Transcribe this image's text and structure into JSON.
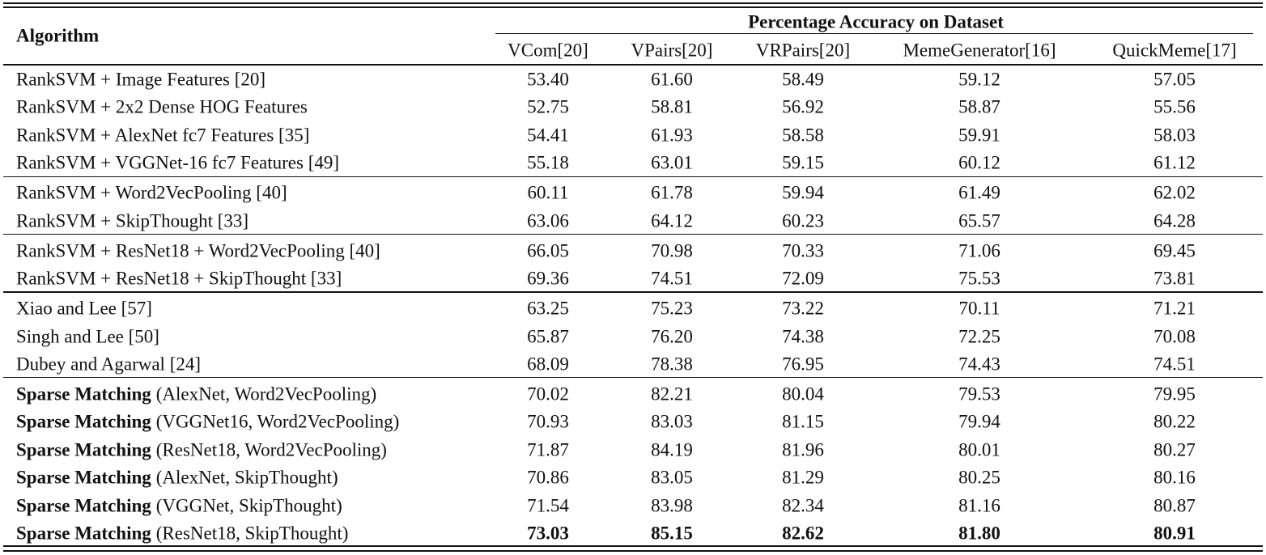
{
  "table": {
    "header": {
      "title": "Algorithm",
      "group": "Percentage Accuracy on Dataset",
      "columns": [
        "VCom[20]",
        "VPairs[20]",
        "VRPairs[20]",
        "MemeGenerator[16]",
        "QuickMeme[17]"
      ]
    },
    "groups": [
      [
        {
          "method": "RankSVM + Image Features [20]",
          "values": [
            "53.40",
            "61.60",
            "58.49",
            "59.12",
            "57.05"
          ]
        },
        {
          "method": "RankSVM + 2x2 Dense HOG Features",
          "values": [
            "52.75",
            "58.81",
            "56.92",
            "58.87",
            "55.56"
          ]
        },
        {
          "method": "RankSVM + AlexNet fc7 Features [35]",
          "values": [
            "54.41",
            "61.93",
            "58.58",
            "59.91",
            "58.03"
          ]
        },
        {
          "method": "RankSVM + VGGNet-16 fc7 Features [49]",
          "values": [
            "55.18",
            "63.01",
            "59.15",
            "60.12",
            "61.12"
          ]
        }
      ],
      [
        {
          "method": "RankSVM + Word2VecPooling [40]",
          "values": [
            "60.11",
            "61.78",
            "59.94",
            "61.49",
            "62.02"
          ]
        },
        {
          "method": "RankSVM + SkipThought [33]",
          "values": [
            "63.06",
            "64.12",
            "60.23",
            "65.57",
            "64.28"
          ]
        }
      ],
      [
        {
          "method": "RankSVM + ResNet18 + Word2VecPooling [40]",
          "values": [
            "66.05",
            "70.98",
            "70.33",
            "71.06",
            "69.45"
          ]
        },
        {
          "method": "RankSVM + ResNet18 + SkipThought [33]",
          "values": [
            "69.36",
            "74.51",
            "72.09",
            "75.53",
            "73.81"
          ]
        }
      ],
      [
        {
          "method": "Xiao and Lee [57]",
          "values": [
            "63.25",
            "75.23",
            "73.22",
            "70.11",
            "71.21"
          ]
        },
        {
          "method": "Singh and Lee [50]",
          "values": [
            "65.87",
            "76.20",
            "74.38",
            "72.25",
            "70.08"
          ]
        },
        {
          "method": "Dubey and Agarwal [24]",
          "values": [
            "68.09",
            "78.38",
            "76.95",
            "74.43",
            "74.51"
          ]
        }
      ],
      [
        {
          "name": "Sparse Matching",
          "detail": "(AlexNet, Word2VecPooling)",
          "values": [
            "70.02",
            "82.21",
            "80.04",
            "79.53",
            "79.95"
          ]
        },
        {
          "name": "Sparse Matching",
          "detail": "(VGGNet16, Word2VecPooling)",
          "values": [
            "70.93",
            "83.03",
            "81.15",
            "79.94",
            "80.22"
          ]
        },
        {
          "name": "Sparse Matching",
          "detail": "(ResNet18, Word2VecPooling)",
          "values": [
            "71.87",
            "84.19",
            "81.96",
            "80.01",
            "80.27"
          ]
        },
        {
          "name": "Sparse Matching",
          "detail": "(AlexNet, SkipThought)",
          "values": [
            "70.86",
            "83.05",
            "81.29",
            "80.25",
            "80.16"
          ]
        },
        {
          "name": "Sparse Matching",
          "detail": "(VGGNet, SkipThought)",
          "values": [
            "71.54",
            "83.98",
            "82.34",
            "81.16",
            "80.87"
          ]
        },
        {
          "name": "Sparse Matching",
          "detail": "(ResNet18, SkipThought)",
          "values": [
            "73.03",
            "85.15",
            "82.62",
            "81.80",
            "80.91"
          ],
          "bold": true
        }
      ]
    ]
  }
}
